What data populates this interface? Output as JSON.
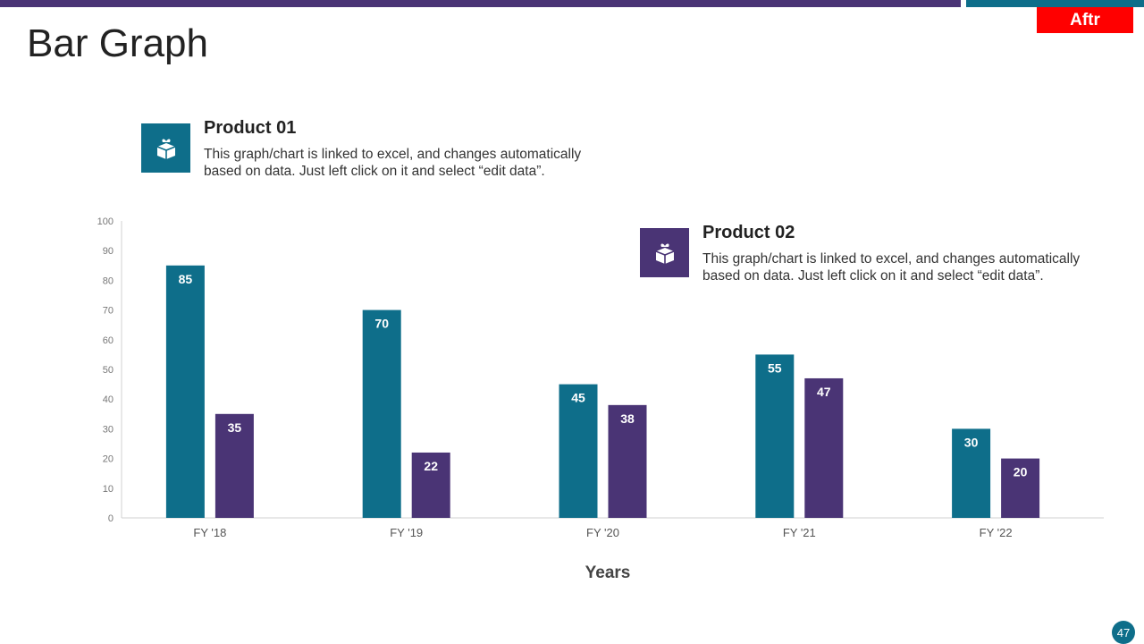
{
  "header": {
    "title": "Bar Graph",
    "brand": "Aftr",
    "bar_colors": [
      "#4a3475",
      "#0e6e8a"
    ]
  },
  "legend": [
    {
      "title": "Product 01",
      "description": "This graph/chart is linked to excel, and changes automatically based on data. Just left click on it and select “edit data”.",
      "icon": "gift-box-icon",
      "color": "#0e6e8a"
    },
    {
      "title": "Product 02",
      "description": "This graph/chart is linked to excel, and changes automatically based on data. Just left click on it and select “edit data”.",
      "icon": "gift-box-icon",
      "color": "#4a3475"
    }
  ],
  "chart_data": {
    "type": "bar",
    "title": "",
    "categories": [
      "FY '18",
      "FY '19",
      "FY '20",
      "FY '21",
      "FY '22"
    ],
    "series": [
      {
        "name": "Product 01",
        "values": [
          85,
          70,
          45,
          55,
          30
        ],
        "color": "#0e6e8a"
      },
      {
        "name": "Product 02",
        "values": [
          35,
          22,
          38,
          47,
          20
        ],
        "color": "#4a3475"
      }
    ],
    "xlabel": "Years",
    "ylabel": "",
    "ylim": [
      0,
      100
    ],
    "yticks": [
      0,
      10,
      20,
      30,
      40,
      50,
      60,
      70,
      80,
      90,
      100
    ],
    "grid": false,
    "data_labels": true
  },
  "footer": {
    "page_number": "47"
  }
}
